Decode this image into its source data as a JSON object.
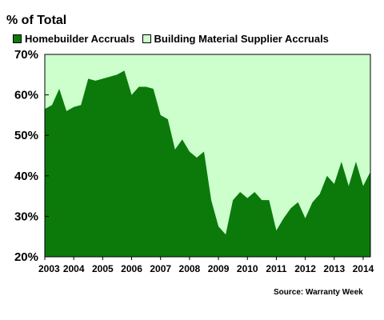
{
  "chart_data": {
    "type": "area",
    "title": "",
    "ylabel": "% of Total",
    "xlabel": "",
    "ylim": [
      20,
      70
    ],
    "yticks": [
      "20%",
      "30%",
      "40%",
      "50%",
      "60%",
      "70%"
    ],
    "xticks": [
      "2003",
      "2004",
      "2005",
      "2006",
      "2007",
      "2008",
      "2009",
      "2010",
      "2011",
      "2012",
      "2013",
      "2014"
    ],
    "xlim": [
      2003.0,
      2014.25
    ],
    "stacked": true,
    "grid": false,
    "legend_position": "top",
    "series": [
      {
        "name": "Homebuilder Accruals",
        "color": "#0b7a0b",
        "x": [
          2003.0,
          2003.25,
          2003.5,
          2003.75,
          2004.0,
          2004.25,
          2004.5,
          2004.75,
          2005.0,
          2005.25,
          2005.5,
          2005.75,
          2006.0,
          2006.25,
          2006.5,
          2006.75,
          2007.0,
          2007.25,
          2007.5,
          2007.75,
          2008.0,
          2008.25,
          2008.5,
          2008.75,
          2009.0,
          2009.25,
          2009.5,
          2009.75,
          2010.0,
          2010.25,
          2010.5,
          2010.75,
          2011.0,
          2011.25,
          2011.5,
          2011.75,
          2012.0,
          2012.25,
          2012.5,
          2012.75,
          2013.0,
          2013.25,
          2013.5,
          2013.75,
          2014.0,
          2014.25
        ],
        "y": [
          56.5,
          57.5,
          61.5,
          56,
          57,
          57.5,
          64,
          63.5,
          64,
          64.5,
          65,
          66,
          60,
          62,
          62,
          61.5,
          55,
          54,
          46.5,
          49,
          46,
          44.5,
          46,
          34,
          27.5,
          25.5,
          34,
          36,
          34.5,
          36,
          34,
          34,
          26.5,
          29.5,
          32,
          33.5,
          29.5,
          33.5,
          35.5,
          40,
          38,
          43.5,
          37.5,
          43.5,
          37.5,
          41
        ]
      },
      {
        "name": "Building Material Supplier Accruals",
        "color": "#ccffcc",
        "total": 100
      }
    ]
  },
  "source": "Source: Warranty Week"
}
